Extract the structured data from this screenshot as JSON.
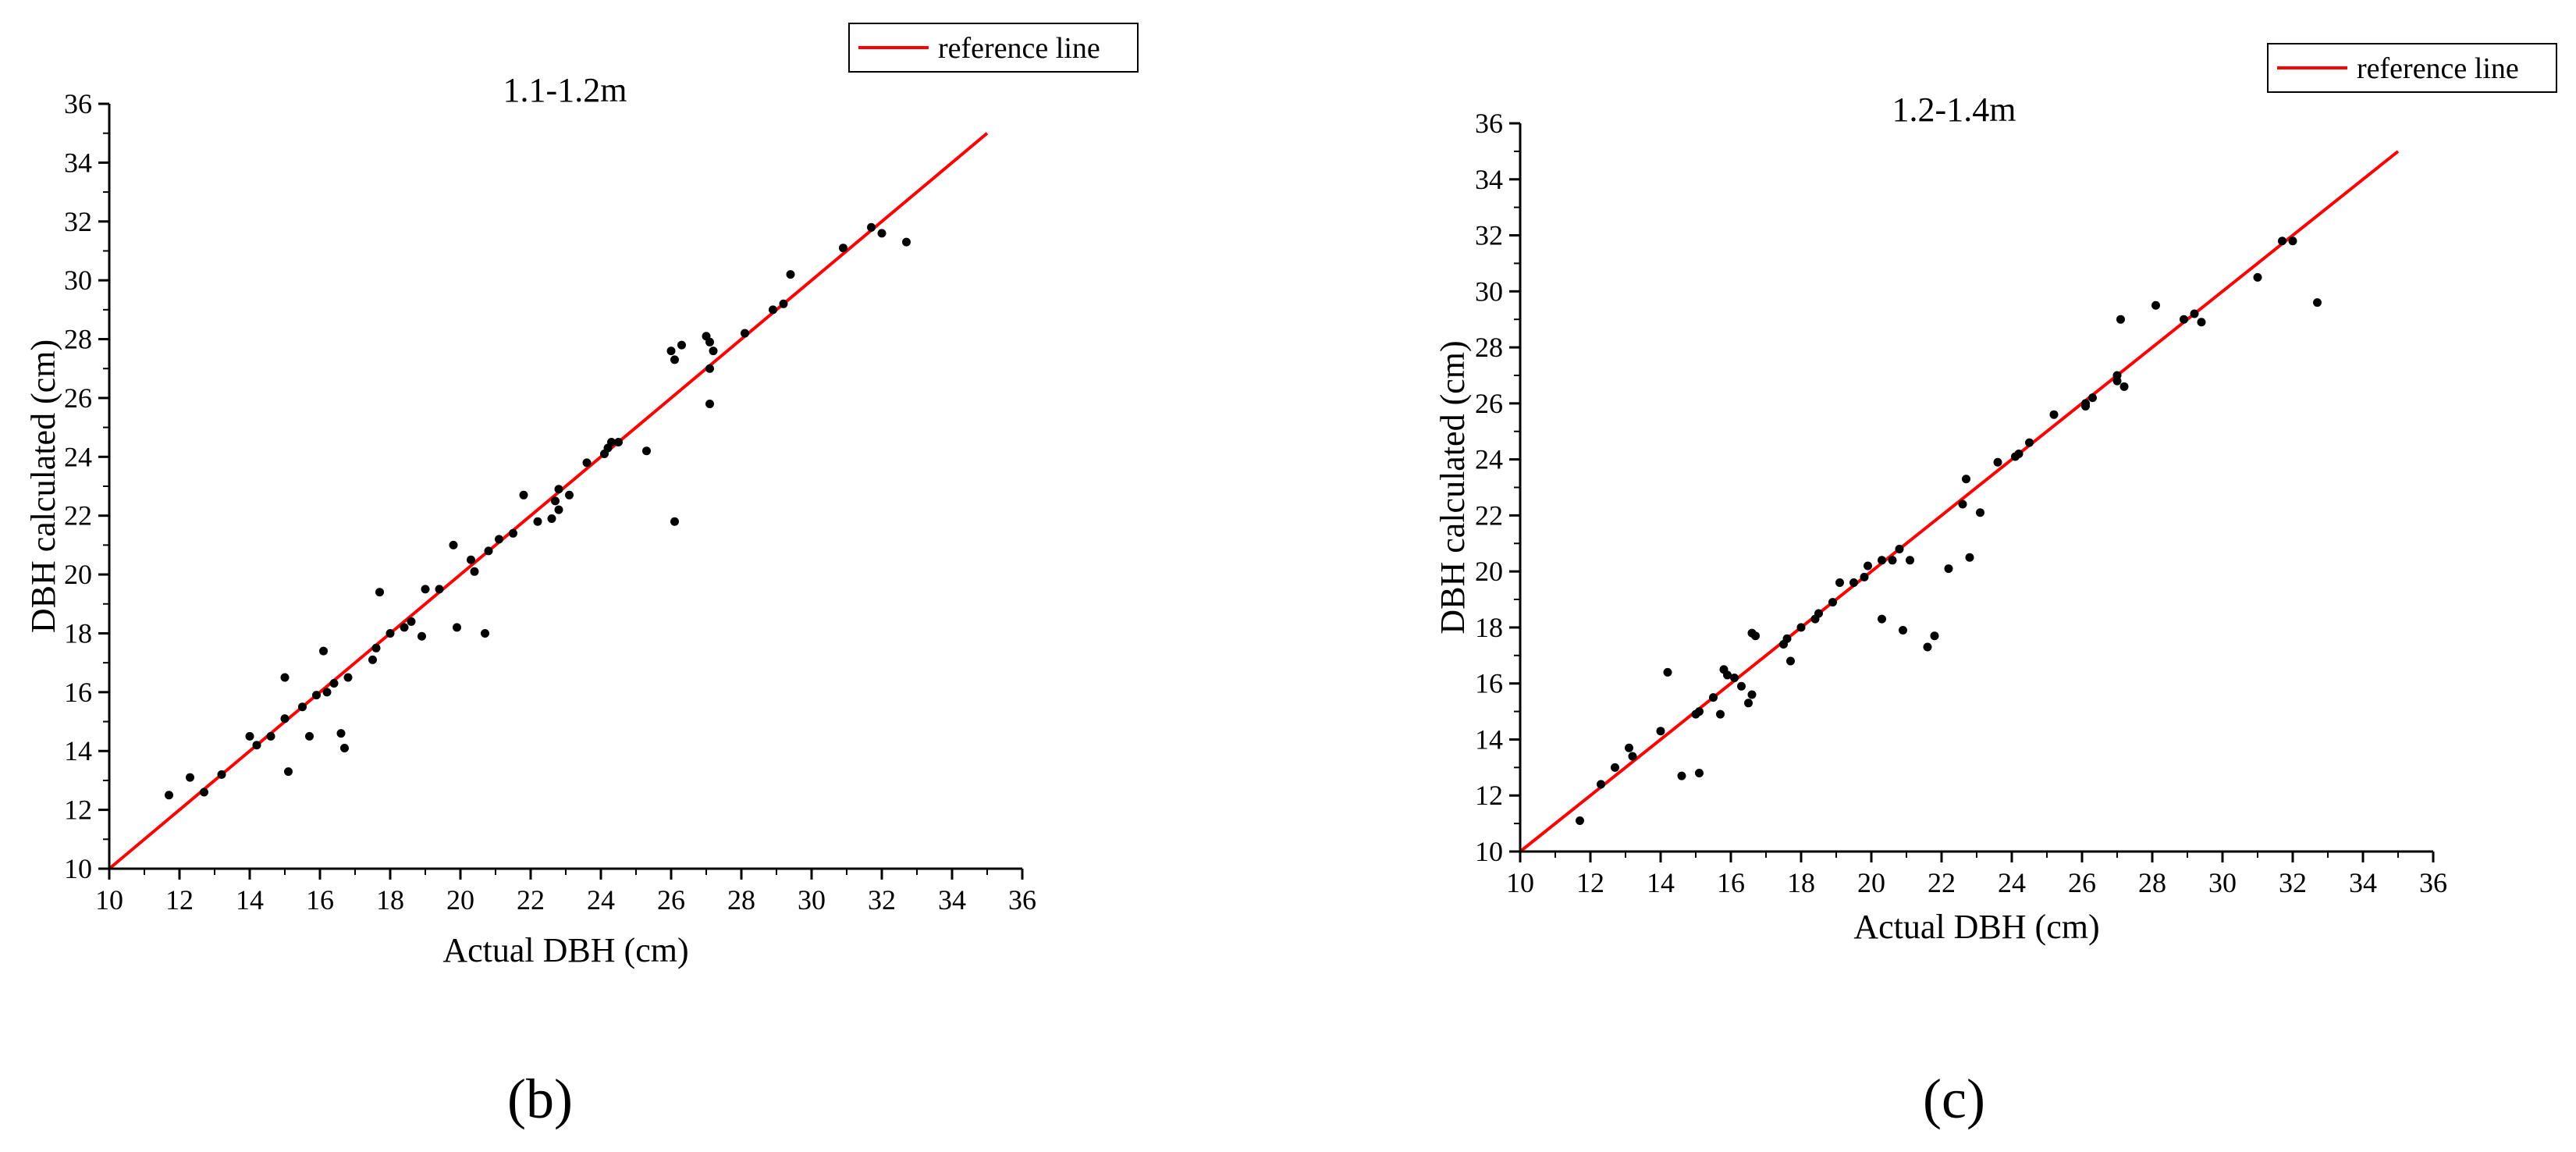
{
  "colors": {
    "reference_line": "#ff0000",
    "points": "#000000",
    "axes": "#000000"
  },
  "chart_data": [
    {
      "type": "scatter",
      "panel_label": "(b)",
      "title": "1.1-1.2m",
      "xlabel": "Actual DBH (cm)",
      "ylabel": "DBH calculated (cm)",
      "xlim": [
        10,
        36
      ],
      "ylim": [
        10,
        36
      ],
      "xticks": [
        10,
        12,
        14,
        16,
        18,
        20,
        22,
        24,
        26,
        28,
        30,
        32,
        34,
        36
      ],
      "yticks": [
        10,
        12,
        14,
        16,
        18,
        20,
        22,
        24,
        26,
        28,
        30,
        32,
        34,
        36
      ],
      "grid": false,
      "legend": {
        "position": "top-right",
        "entries": [
          "reference line"
        ]
      },
      "reference_line": {
        "name": "reference line",
        "x": [
          10,
          35
        ],
        "y": [
          10,
          35
        ]
      },
      "points": [
        [
          11.7,
          12.5
        ],
        [
          12.3,
          13.1
        ],
        [
          12.7,
          12.6
        ],
        [
          13.2,
          13.2
        ],
        [
          14.0,
          14.5
        ],
        [
          14.2,
          14.2
        ],
        [
          14.6,
          14.5
        ],
        [
          15.0,
          16.5
        ],
        [
          15.0,
          15.1
        ],
        [
          15.1,
          13.3
        ],
        [
          15.5,
          15.5
        ],
        [
          15.7,
          14.5
        ],
        [
          15.9,
          15.9
        ],
        [
          16.1,
          17.4
        ],
        [
          16.2,
          16.0
        ],
        [
          16.4,
          16.3
        ],
        [
          16.6,
          14.6
        ],
        [
          16.7,
          14.1
        ],
        [
          16.8,
          16.5
        ],
        [
          17.5,
          17.1
        ],
        [
          17.6,
          17.5
        ],
        [
          17.7,
          19.4
        ],
        [
          18.0,
          18.0
        ],
        [
          18.4,
          18.2
        ],
        [
          18.6,
          18.4
        ],
        [
          18.9,
          17.9
        ],
        [
          19.0,
          19.5
        ],
        [
          19.4,
          19.5
        ],
        [
          19.8,
          21.0
        ],
        [
          19.9,
          18.2
        ],
        [
          20.3,
          20.5
        ],
        [
          20.4,
          20.1
        ],
        [
          20.7,
          18.0
        ],
        [
          20.8,
          20.8
        ],
        [
          21.1,
          21.2
        ],
        [
          21.5,
          21.4
        ],
        [
          21.8,
          22.7
        ],
        [
          22.2,
          21.8
        ],
        [
          22.6,
          21.9
        ],
        [
          22.7,
          22.5
        ],
        [
          22.8,
          22.9
        ],
        [
          22.8,
          22.2
        ],
        [
          23.1,
          22.7
        ],
        [
          23.6,
          23.8
        ],
        [
          24.1,
          24.1
        ],
        [
          24.2,
          24.3
        ],
        [
          24.3,
          24.5
        ],
        [
          24.5,
          24.5
        ],
        [
          25.3,
          24.2
        ],
        [
          26.0,
          27.6
        ],
        [
          26.1,
          27.3
        ],
        [
          26.1,
          21.8
        ],
        [
          26.3,
          27.8
        ],
        [
          27.0,
          28.1
        ],
        [
          27.1,
          27.9
        ],
        [
          27.1,
          27.0
        ],
        [
          27.1,
          25.8
        ],
        [
          27.2,
          27.6
        ],
        [
          28.1,
          28.2
        ],
        [
          28.9,
          29.0
        ],
        [
          29.2,
          29.2
        ],
        [
          29.4,
          30.2
        ],
        [
          30.9,
          31.1
        ],
        [
          31.7,
          31.8
        ],
        [
          32.0,
          31.6
        ],
        [
          32.7,
          31.3
        ]
      ]
    },
    {
      "type": "scatter",
      "panel_label": "(c)",
      "title": "1.2-1.4m",
      "xlabel": "Actual DBH (cm)",
      "ylabel": "DBH calculated (cm)",
      "xlim": [
        10,
        36
      ],
      "ylim": [
        10,
        36
      ],
      "xticks": [
        10,
        12,
        14,
        16,
        18,
        20,
        22,
        24,
        26,
        28,
        30,
        32,
        34,
        36
      ],
      "yticks": [
        10,
        12,
        14,
        16,
        18,
        20,
        22,
        24,
        26,
        28,
        30,
        32,
        34,
        36
      ],
      "grid": false,
      "legend": {
        "position": "top-right",
        "entries": [
          "reference line"
        ]
      },
      "reference_line": {
        "name": "reference line",
        "x": [
          10,
          35
        ],
        "y": [
          10,
          35
        ]
      },
      "points": [
        [
          11.7,
          11.1
        ],
        [
          12.3,
          12.4
        ],
        [
          12.7,
          13.0
        ],
        [
          13.1,
          13.7
        ],
        [
          13.2,
          13.4
        ],
        [
          14.0,
          14.3
        ],
        [
          14.2,
          16.4
        ],
        [
          14.6,
          12.7
        ],
        [
          15.0,
          14.9
        ],
        [
          15.1,
          12.8
        ],
        [
          15.1,
          15.0
        ],
        [
          15.5,
          15.5
        ],
        [
          15.7,
          14.9
        ],
        [
          15.8,
          16.5
        ],
        [
          15.9,
          16.3
        ],
        [
          16.1,
          16.2
        ],
        [
          16.3,
          15.9
        ],
        [
          16.5,
          15.3
        ],
        [
          16.6,
          15.6
        ],
        [
          16.6,
          17.8
        ],
        [
          16.7,
          17.7
        ],
        [
          17.5,
          17.4
        ],
        [
          17.6,
          17.6
        ],
        [
          17.7,
          16.8
        ],
        [
          18.0,
          18.0
        ],
        [
          18.4,
          18.3
        ],
        [
          18.5,
          18.5
        ],
        [
          18.9,
          18.9
        ],
        [
          19.1,
          19.6
        ],
        [
          19.5,
          19.6
        ],
        [
          19.8,
          19.8
        ],
        [
          19.9,
          20.2
        ],
        [
          20.3,
          20.4
        ],
        [
          20.3,
          18.3
        ],
        [
          20.6,
          20.4
        ],
        [
          20.8,
          20.8
        ],
        [
          20.9,
          17.9
        ],
        [
          21.1,
          20.4
        ],
        [
          21.6,
          17.3
        ],
        [
          21.8,
          17.7
        ],
        [
          22.2,
          20.1
        ],
        [
          22.6,
          22.4
        ],
        [
          22.7,
          23.3
        ],
        [
          22.8,
          20.5
        ],
        [
          23.1,
          22.1
        ],
        [
          23.6,
          23.9
        ],
        [
          24.1,
          24.1
        ],
        [
          24.2,
          24.2
        ],
        [
          24.5,
          24.6
        ],
        [
          25.2,
          25.6
        ],
        [
          26.1,
          26.0
        ],
        [
          26.1,
          25.9
        ],
        [
          26.3,
          26.2
        ],
        [
          27.0,
          27.0
        ],
        [
          27.0,
          26.8
        ],
        [
          27.1,
          29.0
        ],
        [
          27.2,
          26.6
        ],
        [
          28.1,
          29.5
        ],
        [
          28.9,
          29.0
        ],
        [
          29.2,
          29.2
        ],
        [
          29.4,
          28.9
        ],
        [
          31.0,
          30.5
        ],
        [
          31.7,
          31.8
        ],
        [
          32.0,
          31.8
        ],
        [
          32.7,
          29.6
        ]
      ]
    }
  ]
}
